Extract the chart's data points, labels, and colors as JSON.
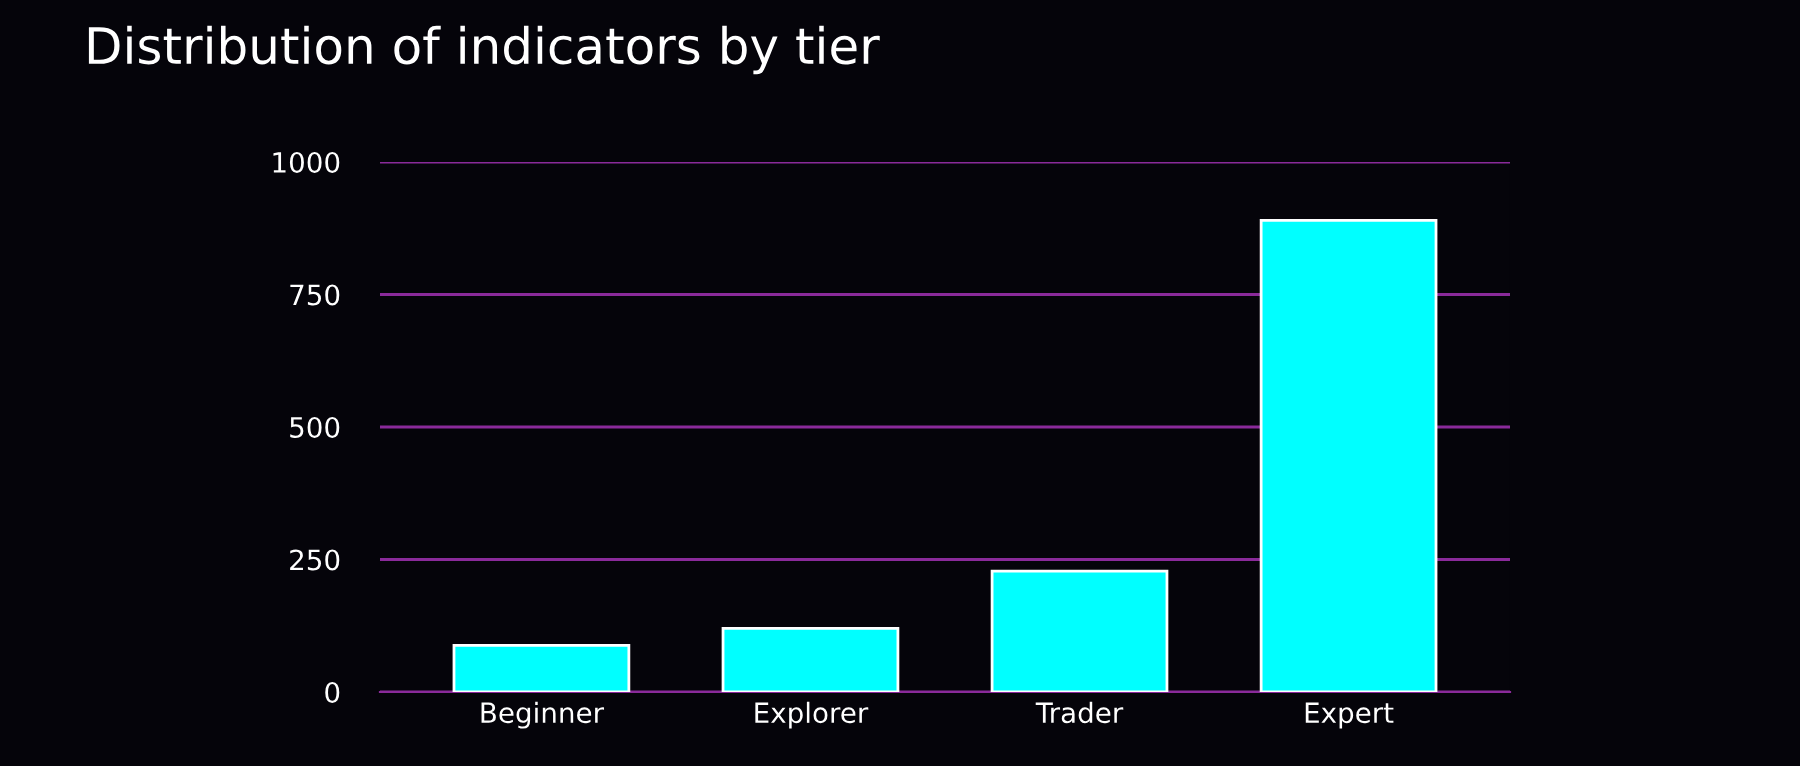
{
  "chart_data": {
    "type": "bar",
    "title": "Distribution of indicators by tier",
    "categories": [
      "Beginner",
      "Explorer",
      "Trader",
      "Expert"
    ],
    "values": [
      88,
      120,
      228,
      890
    ],
    "color": "#00ffff",
    "ylim": [
      0,
      1000
    ],
    "yticks": [
      0,
      250,
      500,
      750,
      1000
    ],
    "grid": "y"
  }
}
